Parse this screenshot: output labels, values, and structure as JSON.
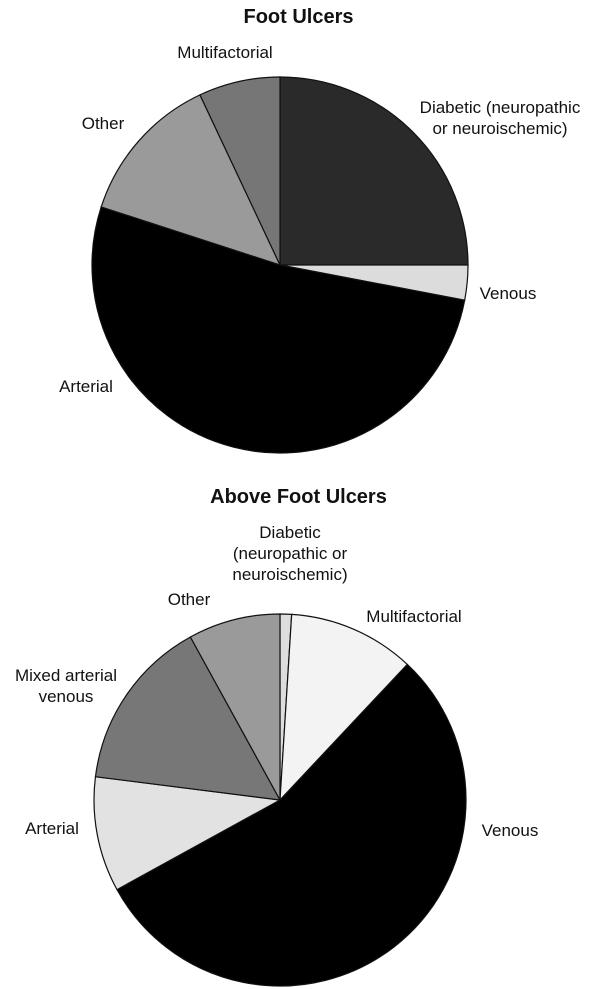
{
  "chart_data": [
    {
      "type": "pie",
      "title": "Foot Ulcers",
      "categories": [
        "Diabetic (neuropathic or neuroischemic)",
        "Venous",
        "Arterial",
        "Other",
        "Multifactorial"
      ],
      "values": [
        25,
        3,
        52,
        13,
        7
      ],
      "colors": [
        "#2a2a2a",
        "#dcdcdc",
        "#000000",
        "#9a9a9a",
        "#767676"
      ]
    },
    {
      "type": "pie",
      "title": "Above Foot Ulcers",
      "categories": [
        "Diabetic (neuropathic or neuroischemic)",
        "Multifactorial",
        "Venous",
        "Arterial",
        "Mixed arterial venous",
        "Other"
      ],
      "values": [
        1,
        11,
        55,
        10,
        15,
        8
      ],
      "colors": [
        "#dddddd",
        "#f3f3f3",
        "#000000",
        "#e2e2e2",
        "#777777",
        "#9a9a9a"
      ]
    }
  ]
}
